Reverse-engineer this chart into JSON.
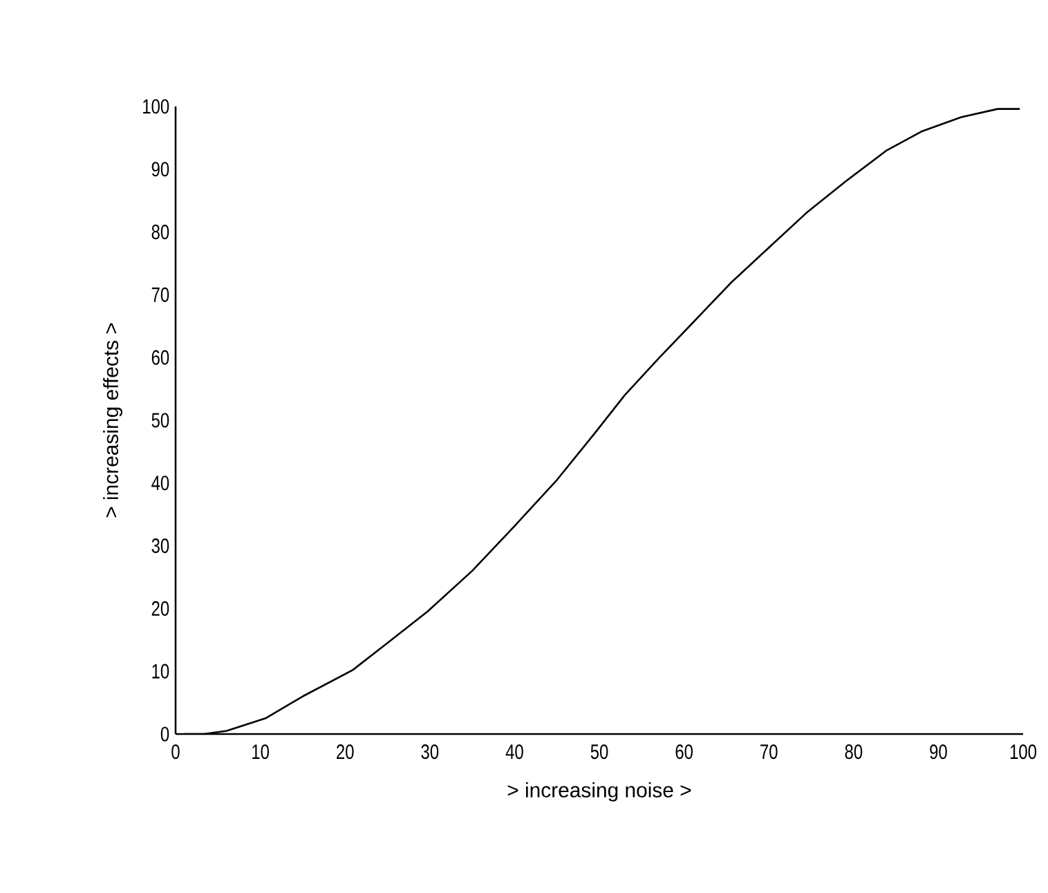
{
  "chart_data": {
    "type": "line",
    "xlabel": ">  increasing noise >",
    "ylabel": "> increasing effects >",
    "xlim": [
      0,
      100
    ],
    "ylim": [
      0,
      100
    ],
    "xticks": [
      0,
      10,
      20,
      30,
      40,
      50,
      60,
      70,
      80,
      90,
      100
    ],
    "yticks": [
      0,
      10,
      20,
      30,
      40,
      50,
      60,
      70,
      80,
      90,
      100
    ],
    "grid": false,
    "marker": "none",
    "line_style": "solid",
    "series": [
      {
        "color": "#000000",
        "x": [
          1,
          3.3,
          6,
          10.6,
          15,
          20.9,
          25,
          29.7,
          35,
          39.9,
          45,
          49.5,
          53,
          57.1,
          61,
          65.6,
          70,
          74.4,
          79,
          83.9,
          88,
          92.7,
          97,
          99.6
        ],
        "values": [
          0,
          0,
          0.5,
          2.5,
          6,
          10.2,
          14.5,
          19.5,
          26,
          33,
          40.5,
          48,
          54,
          60,
          65.5,
          72,
          77.5,
          83,
          88,
          93,
          96,
          98.3,
          99.6,
          99.6
        ]
      }
    ]
  }
}
